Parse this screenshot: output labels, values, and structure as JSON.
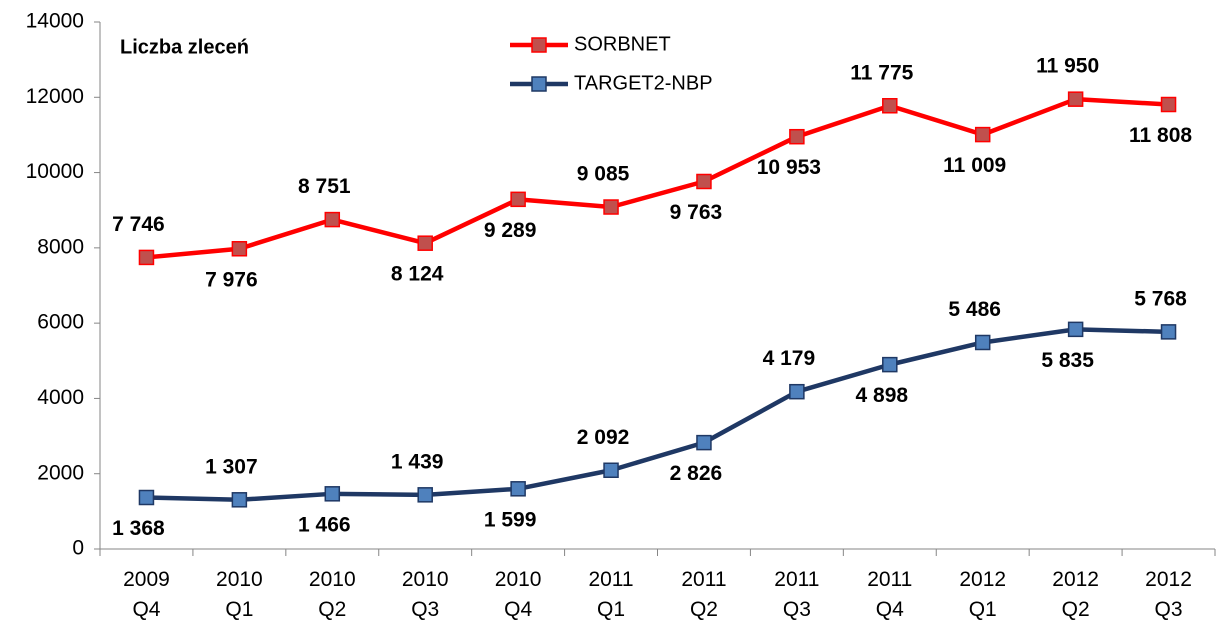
{
  "chart_data": {
    "type": "line",
    "title": "Liczba zleceń",
    "categories": [
      "2009\nQ4",
      "2010\nQ1",
      "2010\nQ2",
      "2010\nQ3",
      "2010\nQ4",
      "2011\nQ1",
      "2011\nQ2",
      "2011\nQ3",
      "2011\nQ4",
      "2012\nQ1",
      "2012\nQ2",
      "2012\nQ3"
    ],
    "series": [
      {
        "name": "SORBNET",
        "color": "#ff0000",
        "marker_color": "#c0504d",
        "values": [
          7746,
          7976,
          8751,
          8124,
          9289,
          9085,
          9763,
          10953,
          11775,
          11009,
          11950,
          11808
        ],
        "value_labels": [
          "7 746",
          "7 976",
          "8 751",
          "8 124",
          "9 289",
          "9 085",
          "9 763",
          "10 953",
          "11 775",
          "11 009",
          "11 950",
          "11 808"
        ]
      },
      {
        "name": "TARGET2-NBP",
        "color": "#1f3864",
        "marker_color": "#4f81bd",
        "values": [
          1368,
          1307,
          1466,
          1439,
          1599,
          2092,
          2826,
          4179,
          4898,
          5486,
          5835,
          5768
        ],
        "value_labels": [
          "1 368",
          "1 307",
          "1 466",
          "1 439",
          "1 599",
          "2 092",
          "2 826",
          "4 179",
          "4 898",
          "5 486",
          "5 835",
          "5 768"
        ]
      }
    ],
    "ylim": [
      0,
      14000
    ],
    "yticks": [
      0,
      2000,
      4000,
      6000,
      8000,
      10000,
      12000,
      14000
    ],
    "grid": false,
    "legend": "top"
  }
}
